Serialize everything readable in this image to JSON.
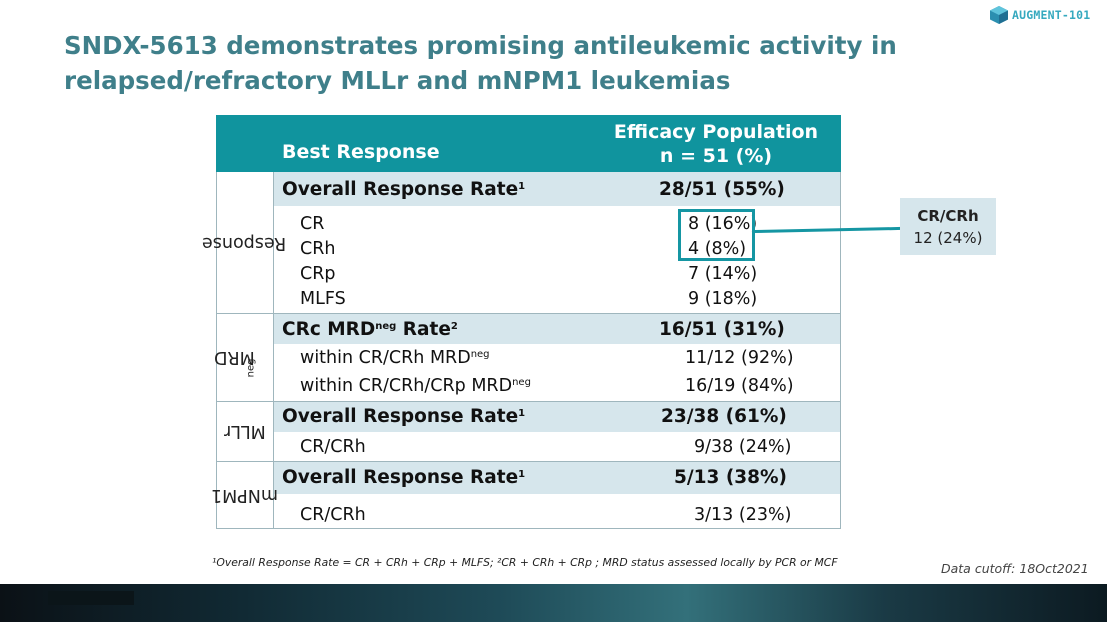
{
  "title": "SNDX-5613 demonstrates promising antileukemic activity in relapsed/refractory MLLr and mNPM1 leukemias",
  "logo": {
    "text": "AUGMENT-101",
    "icon": "hexagon-cube-icon",
    "color": "#36a9bf"
  },
  "table": {
    "header": {
      "best_response": "Best Response",
      "efficacy_line1": "Efficacy Population",
      "efficacy_line2": "n = 51 (%)"
    },
    "groups": [
      {
        "label": "Response"
      },
      {
        "label": "MRD",
        "sup": "neg"
      },
      {
        "label": "MLLr"
      },
      {
        "label": "mNPM1"
      }
    ],
    "rows": [
      {
        "label": "Overall Response Rate",
        "sup": "1",
        "value": "28/51 (55%)"
      },
      {
        "label": "CR",
        "value": "8 (16%)"
      },
      {
        "label": "CRh",
        "value": "4 (8%)"
      },
      {
        "label": "CRp",
        "value": "7 (14%)"
      },
      {
        "label": "MLFS",
        "value": "9 (18%)"
      },
      {
        "label": "CRc MRD",
        "label_sup": "neg",
        "label_suffix": " Rate",
        "sup": "2",
        "value": "16/51 (31%)"
      },
      {
        "label": "within CR/CRh MRD",
        "label_sup": "neg",
        "value": "11/12 (92%)"
      },
      {
        "label": "within CR/CRh/CRp MRD",
        "label_sup": "neg",
        "value": "16/19 (84%)"
      },
      {
        "label": "Overall Response Rate",
        "sup": "1",
        "value": "23/38 (61%)"
      },
      {
        "label": "CR/CRh",
        "value": "9/38 (24%)"
      },
      {
        "label": "Overall Response Rate",
        "sup": "1",
        "value": "5/13 (38%)"
      },
      {
        "label": "CR/CRh",
        "value": "3/13 (23%)"
      }
    ]
  },
  "callout": {
    "line1": "CR/CRh",
    "line2": "12 (24%)"
  },
  "footnote": "¹Overall Response Rate = CR + CRh + CRp + MLFS; ²CR + CRh + CRp ; MRD status assessed locally by PCR or MCF",
  "data_cutoff": "Data cutoff: 18Oct2021",
  "colors": {
    "title": "#3f7f8a",
    "header_bg": "#10949e",
    "band": "#d6e6ec",
    "highlight": "#1596a3"
  }
}
